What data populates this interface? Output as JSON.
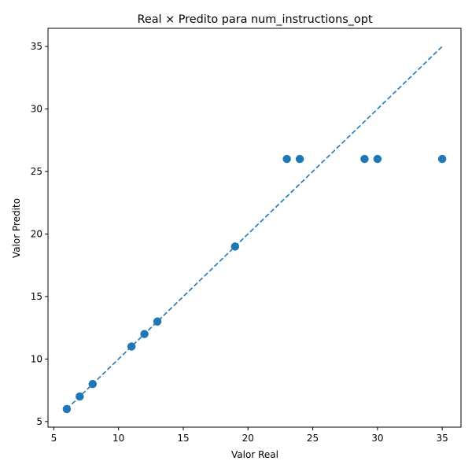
{
  "chart_data": {
    "type": "scatter",
    "title": "Real × Predito para num_instructions_opt",
    "xlabel": "Valor Real",
    "ylabel": "Valor Predito",
    "xlim": [
      4.55,
      36.45
    ],
    "ylim": [
      4.55,
      36.45
    ],
    "xticks": [
      5,
      10,
      15,
      20,
      25,
      30,
      35
    ],
    "yticks": [
      5,
      10,
      15,
      20,
      25,
      30,
      35
    ],
    "grid": false,
    "point_color": "#1f77b4",
    "line_color": "#1f77b4",
    "points": [
      {
        "x": 6,
        "y": 6
      },
      {
        "x": 7,
        "y": 7
      },
      {
        "x": 8,
        "y": 8
      },
      {
        "x": 11,
        "y": 11
      },
      {
        "x": 12,
        "y": 12
      },
      {
        "x": 13,
        "y": 13
      },
      {
        "x": 19,
        "y": 19
      },
      {
        "x": 23,
        "y": 26
      },
      {
        "x": 24,
        "y": 26
      },
      {
        "x": 29,
        "y": 26
      },
      {
        "x": 30,
        "y": 26
      },
      {
        "x": 35,
        "y": 26
      }
    ],
    "reference_line": {
      "x": [
        6,
        35
      ],
      "y": [
        6,
        35
      ],
      "style": "dashed"
    }
  }
}
